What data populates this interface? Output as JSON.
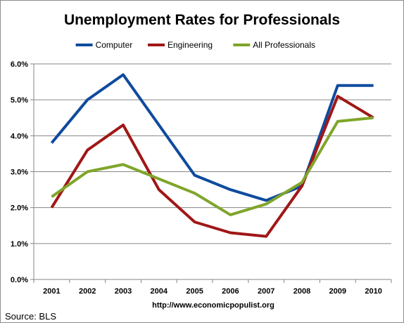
{
  "chart_data": {
    "type": "line",
    "title": "Unemployment Rates for Professionals",
    "xlabel": "",
    "ylabel": "",
    "categories": [
      "2001",
      "2002",
      "2003",
      "2004",
      "2005",
      "2006",
      "2007",
      "2008",
      "2009",
      "2010"
    ],
    "series": [
      {
        "name": "Computer",
        "color": "#0f4b9e",
        "values": [
          3.8,
          5.0,
          5.7,
          4.3,
          2.9,
          2.5,
          2.2,
          2.6,
          5.4,
          5.4
        ]
      },
      {
        "name": "Engineering",
        "color": "#a01717",
        "values": [
          2.0,
          3.6,
          4.3,
          2.5,
          1.6,
          1.3,
          1.2,
          2.6,
          5.1,
          4.5
        ]
      },
      {
        "name": "All Professionals",
        "color": "#7fa52a",
        "values": [
          2.3,
          3.0,
          3.2,
          2.8,
          2.4,
          1.8,
          2.1,
          2.7,
          4.4,
          4.5
        ]
      }
    ],
    "ylim": [
      0,
      6
    ],
    "yticks": [
      0,
      1,
      2,
      3,
      4,
      5,
      6
    ],
    "ytick_labels": [
      "0.0%",
      "1.0%",
      "2.0%",
      "3.0%",
      "4.0%",
      "5.0%",
      "6.0%"
    ],
    "grid": "horizontal",
    "legend_position": "top"
  },
  "footer": {
    "url": "http://www.economicpopulist.org",
    "source": "Source:  BLS"
  }
}
